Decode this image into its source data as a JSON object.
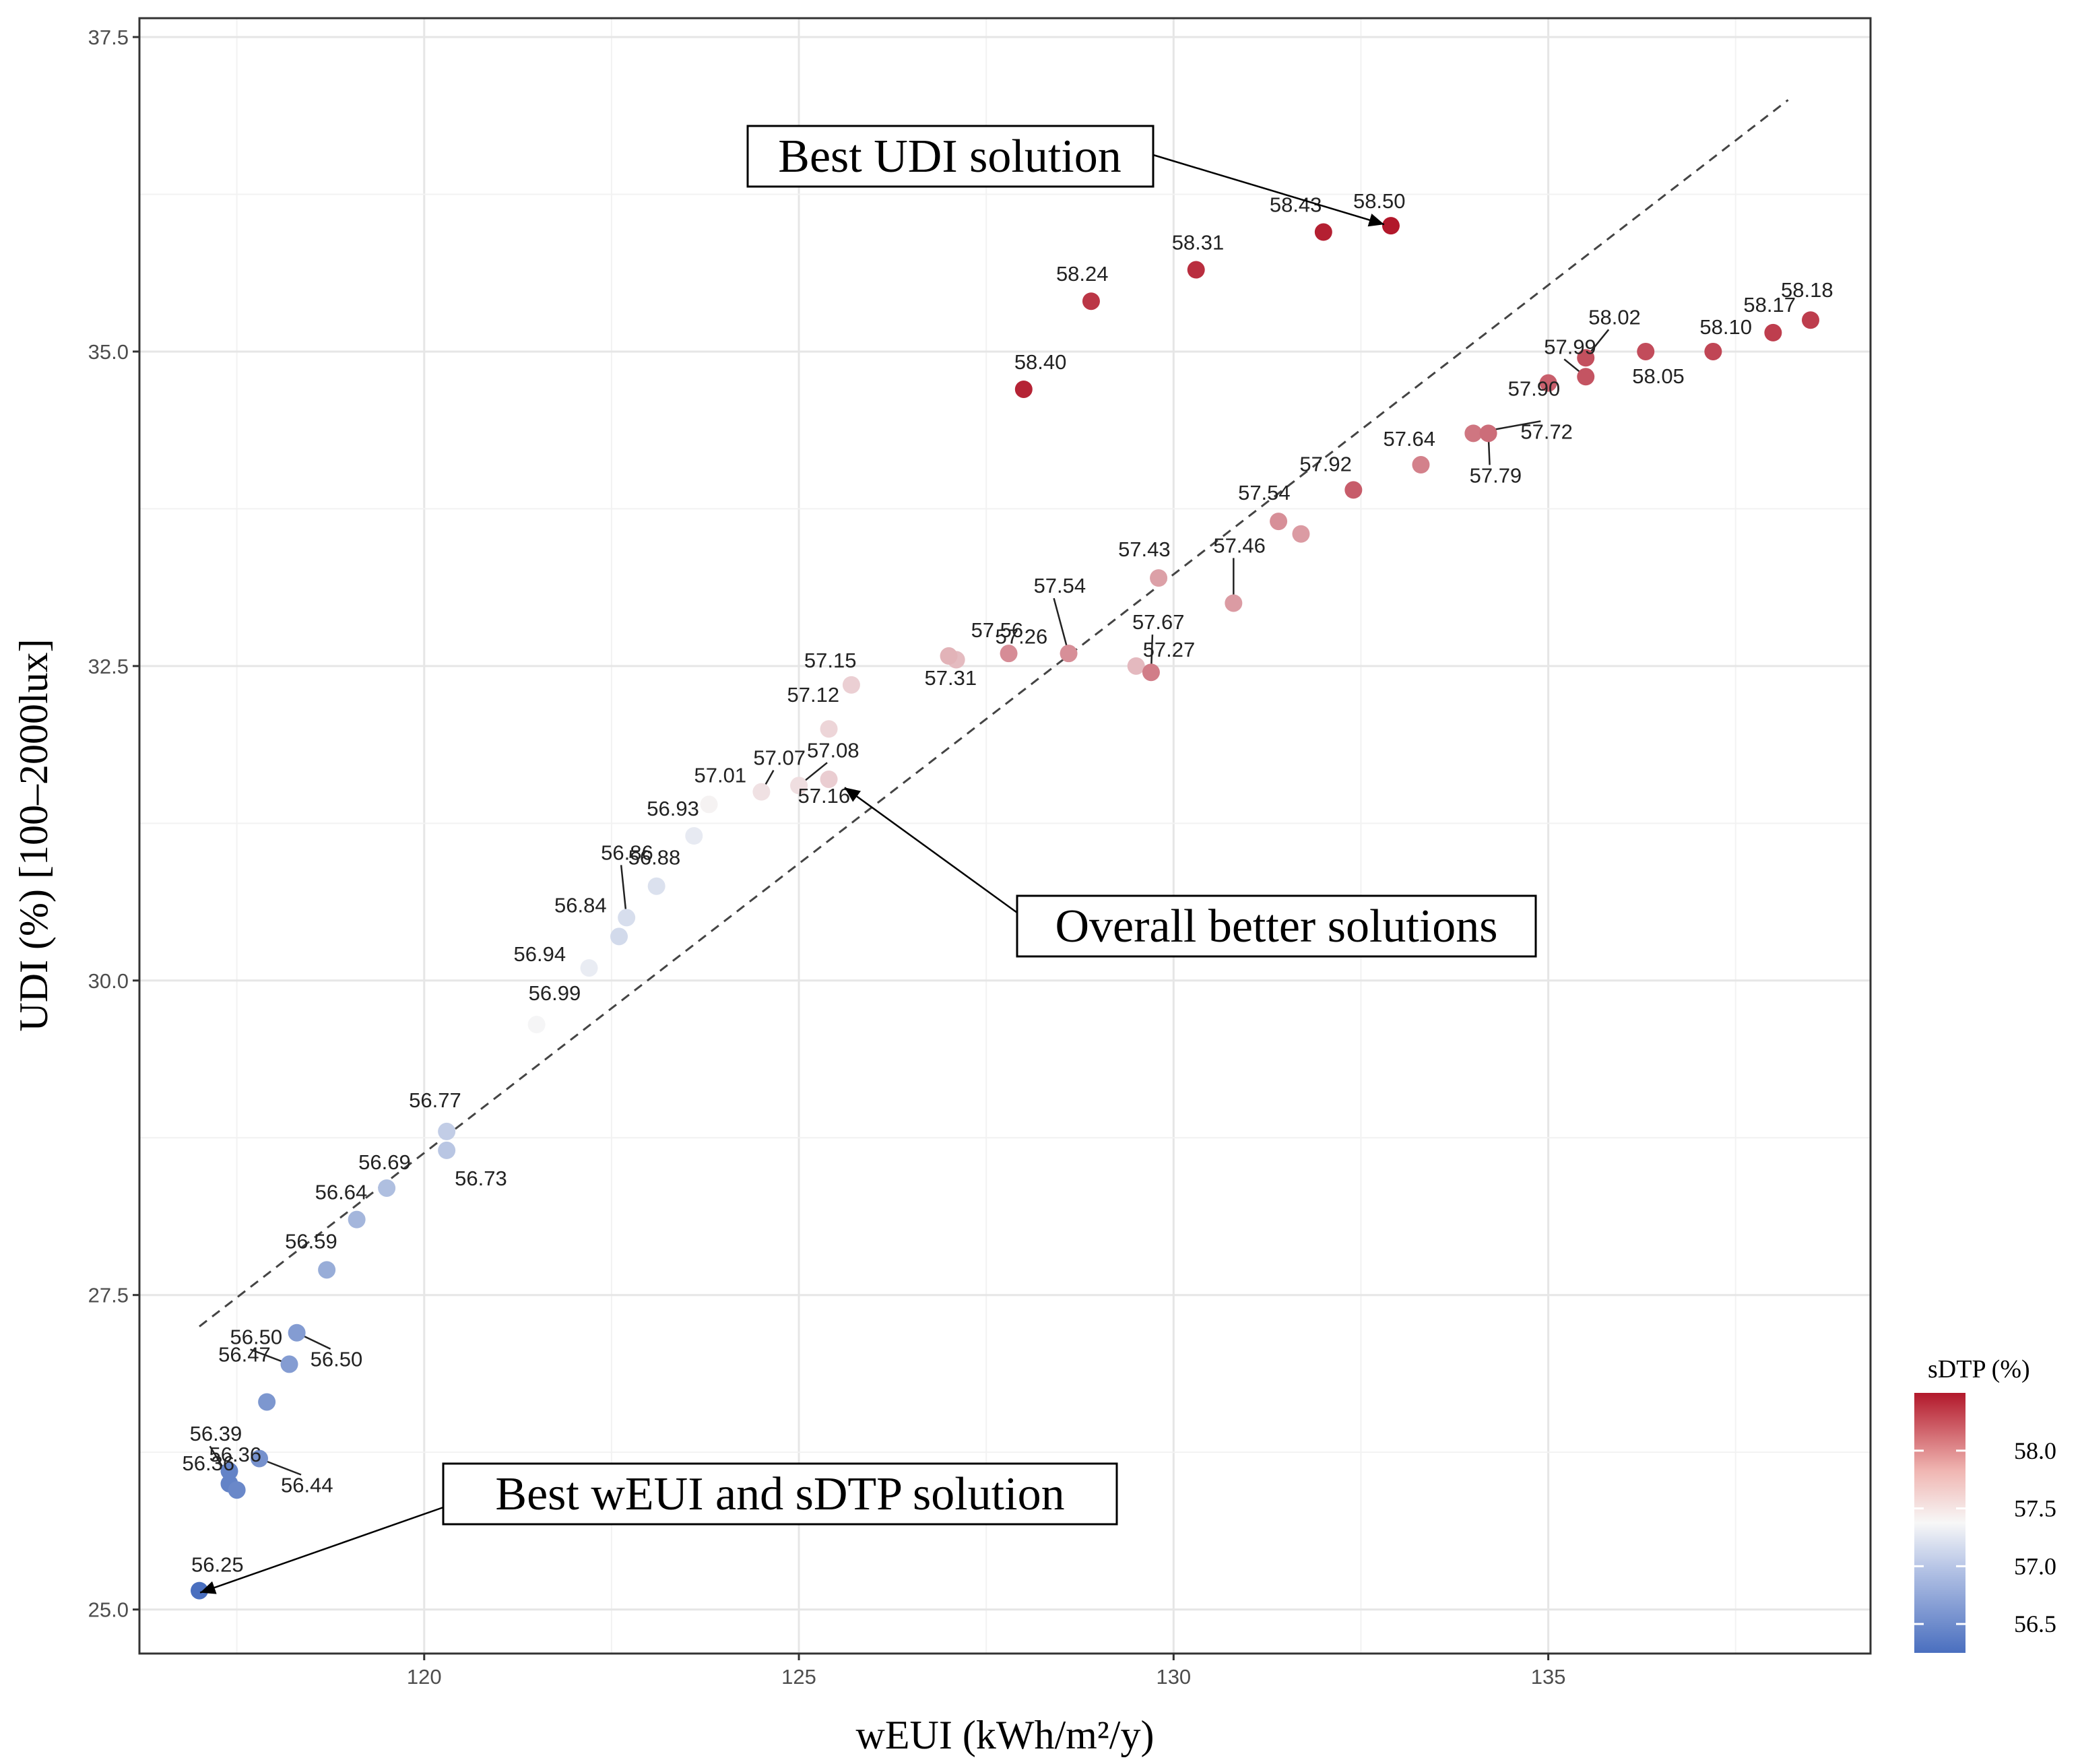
{
  "chart_data": {
    "type": "scatter",
    "xlabel": "wEUI (kWh/m²/y)",
    "ylabel": "UDI (%) [100–2000lux]",
    "xlim": [
      116.2,
      139.3
    ],
    "ylim": [
      24.65,
      37.65
    ],
    "x_ticks": [
      "120",
      "125",
      "130",
      "135"
    ],
    "y_ticks": [
      "25.0",
      "27.5",
      "30.0",
      "32.5",
      "35.0",
      "37.5"
    ],
    "grid": true,
    "color_legend": {
      "title": "sDTP (%)",
      "range": [
        56.25,
        58.5
      ],
      "ticks": [
        "56.5",
        "57.0",
        "57.5",
        "58.0"
      ],
      "low_color": "#4A6FBF",
      "mid_color": "#F7F7F7",
      "high_color": "#B2182B",
      "placement": "right"
    },
    "trend_line": {
      "style": "dashed",
      "x": [
        117.0,
        138.2
      ],
      "y": [
        27.25,
        37.0
      ]
    },
    "points": [
      {
        "x": 117.0,
        "y": 25.15,
        "sdtp": 56.25,
        "label": "56.25"
      },
      {
        "x": 117.4,
        "y": 26.0,
        "sdtp": 56.36,
        "label": "56.36"
      },
      {
        "x": 117.4,
        "y": 26.1,
        "sdtp": 56.36,
        "label": "56.36"
      },
      {
        "x": 117.5,
        "y": 25.95,
        "sdtp": 56.39,
        "label": "56.39"
      },
      {
        "x": 117.8,
        "y": 26.2,
        "sdtp": 56.44,
        "label": "56.44"
      },
      {
        "x": 117.9,
        "y": 26.65,
        "sdtp": 56.47,
        "label": "56.47"
      },
      {
        "x": 118.2,
        "y": 26.95,
        "sdtp": 56.5,
        "label": "56.50"
      },
      {
        "x": 118.3,
        "y": 27.2,
        "sdtp": 56.5,
        "label": "56.50"
      },
      {
        "x": 118.7,
        "y": 27.7,
        "sdtp": 56.59,
        "label": "56.59"
      },
      {
        "x": 119.1,
        "y": 28.1,
        "sdtp": 56.64,
        "label": "56.64"
      },
      {
        "x": 119.5,
        "y": 28.35,
        "sdtp": 56.69,
        "label": "56.69"
      },
      {
        "x": 120.3,
        "y": 28.65,
        "sdtp": 56.73,
        "label": "56.73"
      },
      {
        "x": 120.3,
        "y": 28.8,
        "sdtp": 56.77,
        "label": "56.77"
      },
      {
        "x": 121.5,
        "y": 29.65,
        "sdtp": 56.99,
        "label": "56.99"
      },
      {
        "x": 122.2,
        "y": 30.1,
        "sdtp": 56.94,
        "label": "56.94"
      },
      {
        "x": 122.6,
        "y": 30.35,
        "sdtp": 56.84,
        "label": "56.84"
      },
      {
        "x": 122.7,
        "y": 30.5,
        "sdtp": 56.86,
        "label": "56.86"
      },
      {
        "x": 123.1,
        "y": 30.75,
        "sdtp": 56.88,
        "label": "56.88"
      },
      {
        "x": 123.6,
        "y": 31.15,
        "sdtp": 56.93,
        "label": "56.93"
      },
      {
        "x": 123.8,
        "y": 31.4,
        "sdtp": 57.01,
        "label": "57.01"
      },
      {
        "x": 124.5,
        "y": 31.5,
        "sdtp": 57.07,
        "label": "57.07"
      },
      {
        "x": 125.0,
        "y": 31.55,
        "sdtp": 57.08,
        "label": "57.08"
      },
      {
        "x": 125.4,
        "y": 31.6,
        "sdtp": 57.16,
        "label": "57.16"
      },
      {
        "x": 125.4,
        "y": 32.0,
        "sdtp": 57.12,
        "label": "57.12"
      },
      {
        "x": 125.7,
        "y": 32.35,
        "sdtp": 57.15,
        "label": "57.15"
      },
      {
        "x": 127.1,
        "y": 32.55,
        "sdtp": 57.26,
        "label": "57.26"
      },
      {
        "x": 127.0,
        "y": 32.58,
        "sdtp": 57.31,
        "label": "57.31"
      },
      {
        "x": 127.8,
        "y": 32.6,
        "sdtp": 57.56,
        "label": "57.56"
      },
      {
        "x": 128.6,
        "y": 32.6,
        "sdtp": 57.54,
        "label": "57.54"
      },
      {
        "x": 129.5,
        "y": 32.5,
        "sdtp": 57.27,
        "label": "57.27"
      },
      {
        "x": 129.7,
        "y": 32.45,
        "sdtp": 57.67,
        "label": "57.67"
      },
      {
        "x": 129.8,
        "y": 33.2,
        "sdtp": 57.43,
        "label": "57.43"
      },
      {
        "x": 130.8,
        "y": 33.0,
        "sdtp": 57.46,
        "label": "57.46"
      },
      {
        "x": 131.4,
        "y": 33.65,
        "sdtp": 57.54,
        "label": "57.54"
      },
      {
        "x": 131.7,
        "y": 33.55,
        "sdtp": 57.46,
        "label": ""
      },
      {
        "x": 132.4,
        "y": 33.9,
        "sdtp": 57.92,
        "label": "57.92"
      },
      {
        "x": 133.3,
        "y": 34.1,
        "sdtp": 57.64,
        "label": "57.64"
      },
      {
        "x": 134.0,
        "y": 34.35,
        "sdtp": 57.72,
        "label": "57.72"
      },
      {
        "x": 134.2,
        "y": 34.35,
        "sdtp": 57.79,
        "label": "57.79"
      },
      {
        "x": 135.0,
        "y": 34.75,
        "sdtp": 57.9,
        "label": "57.90"
      },
      {
        "x": 135.5,
        "y": 34.8,
        "sdtp": 57.99,
        "label": "57.99"
      },
      {
        "x": 135.5,
        "y": 34.95,
        "sdtp": 58.02,
        "label": "58.02"
      },
      {
        "x": 136.3,
        "y": 35.0,
        "sdtp": 58.05,
        "label": "58.05"
      },
      {
        "x": 137.2,
        "y": 35.0,
        "sdtp": 58.1,
        "label": "58.10"
      },
      {
        "x": 138.0,
        "y": 35.15,
        "sdtp": 58.17,
        "label": "58.17"
      },
      {
        "x": 138.5,
        "y": 35.25,
        "sdtp": 58.18,
        "label": "58.18"
      },
      {
        "x": 128.0,
        "y": 34.7,
        "sdtp": 58.4,
        "label": "58.40"
      },
      {
        "x": 128.9,
        "y": 35.4,
        "sdtp": 58.24,
        "label": "58.24"
      },
      {
        "x": 130.3,
        "y": 35.65,
        "sdtp": 58.31,
        "label": "58.31"
      },
      {
        "x": 132.0,
        "y": 35.95,
        "sdtp": 58.43,
        "label": "58.43"
      },
      {
        "x": 132.9,
        "y": 36.0,
        "sdtp": 58.5,
        "label": "58.50"
      }
    ],
    "annotations": [
      {
        "text": "Best UDI solution",
        "target_x": 132.9,
        "target_y": 36.0
      },
      {
        "text": "Overall better solutions",
        "target_x": 125.7,
        "target_y": 31.55
      },
      {
        "text": "Best wEUI and sDTP solution",
        "target_x": 117.1,
        "target_y": 25.15
      }
    ]
  }
}
